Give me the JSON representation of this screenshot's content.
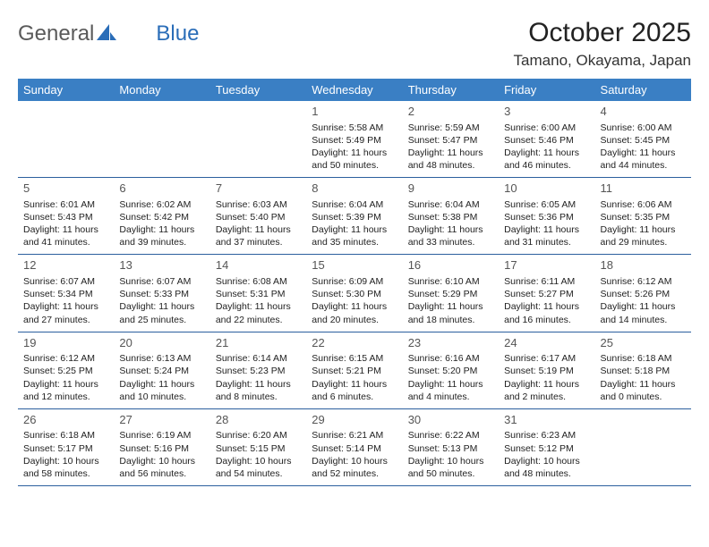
{
  "logo": {
    "text_gray": "General",
    "text_blue": "Blue"
  },
  "title": "October 2025",
  "location": "Tamano, Okayama, Japan",
  "colors": {
    "header_bg": "#3a7fc4",
    "header_text": "#ffffff",
    "row_border": "#2b5f9e",
    "logo_gray": "#5a5a5a",
    "logo_blue": "#2a6db8",
    "daynum": "#555555",
    "body_text": "#222222",
    "page_bg": "#ffffff"
  },
  "weekdays": [
    "Sunday",
    "Monday",
    "Tuesday",
    "Wednesday",
    "Thursday",
    "Friday",
    "Saturday"
  ],
  "weeks": [
    [
      null,
      null,
      null,
      {
        "d": "1",
        "sr": "Sunrise: 5:58 AM",
        "ss": "Sunset: 5:49 PM",
        "dl1": "Daylight: 11 hours",
        "dl2": "and 50 minutes."
      },
      {
        "d": "2",
        "sr": "Sunrise: 5:59 AM",
        "ss": "Sunset: 5:47 PM",
        "dl1": "Daylight: 11 hours",
        "dl2": "and 48 minutes."
      },
      {
        "d": "3",
        "sr": "Sunrise: 6:00 AM",
        "ss": "Sunset: 5:46 PM",
        "dl1": "Daylight: 11 hours",
        "dl2": "and 46 minutes."
      },
      {
        "d": "4",
        "sr": "Sunrise: 6:00 AM",
        "ss": "Sunset: 5:45 PM",
        "dl1": "Daylight: 11 hours",
        "dl2": "and 44 minutes."
      }
    ],
    [
      {
        "d": "5",
        "sr": "Sunrise: 6:01 AM",
        "ss": "Sunset: 5:43 PM",
        "dl1": "Daylight: 11 hours",
        "dl2": "and 41 minutes."
      },
      {
        "d": "6",
        "sr": "Sunrise: 6:02 AM",
        "ss": "Sunset: 5:42 PM",
        "dl1": "Daylight: 11 hours",
        "dl2": "and 39 minutes."
      },
      {
        "d": "7",
        "sr": "Sunrise: 6:03 AM",
        "ss": "Sunset: 5:40 PM",
        "dl1": "Daylight: 11 hours",
        "dl2": "and 37 minutes."
      },
      {
        "d": "8",
        "sr": "Sunrise: 6:04 AM",
        "ss": "Sunset: 5:39 PM",
        "dl1": "Daylight: 11 hours",
        "dl2": "and 35 minutes."
      },
      {
        "d": "9",
        "sr": "Sunrise: 6:04 AM",
        "ss": "Sunset: 5:38 PM",
        "dl1": "Daylight: 11 hours",
        "dl2": "and 33 minutes."
      },
      {
        "d": "10",
        "sr": "Sunrise: 6:05 AM",
        "ss": "Sunset: 5:36 PM",
        "dl1": "Daylight: 11 hours",
        "dl2": "and 31 minutes."
      },
      {
        "d": "11",
        "sr": "Sunrise: 6:06 AM",
        "ss": "Sunset: 5:35 PM",
        "dl1": "Daylight: 11 hours",
        "dl2": "and 29 minutes."
      }
    ],
    [
      {
        "d": "12",
        "sr": "Sunrise: 6:07 AM",
        "ss": "Sunset: 5:34 PM",
        "dl1": "Daylight: 11 hours",
        "dl2": "and 27 minutes."
      },
      {
        "d": "13",
        "sr": "Sunrise: 6:07 AM",
        "ss": "Sunset: 5:33 PM",
        "dl1": "Daylight: 11 hours",
        "dl2": "and 25 minutes."
      },
      {
        "d": "14",
        "sr": "Sunrise: 6:08 AM",
        "ss": "Sunset: 5:31 PM",
        "dl1": "Daylight: 11 hours",
        "dl2": "and 22 minutes."
      },
      {
        "d": "15",
        "sr": "Sunrise: 6:09 AM",
        "ss": "Sunset: 5:30 PM",
        "dl1": "Daylight: 11 hours",
        "dl2": "and 20 minutes."
      },
      {
        "d": "16",
        "sr": "Sunrise: 6:10 AM",
        "ss": "Sunset: 5:29 PM",
        "dl1": "Daylight: 11 hours",
        "dl2": "and 18 minutes."
      },
      {
        "d": "17",
        "sr": "Sunrise: 6:11 AM",
        "ss": "Sunset: 5:27 PM",
        "dl1": "Daylight: 11 hours",
        "dl2": "and 16 minutes."
      },
      {
        "d": "18",
        "sr": "Sunrise: 6:12 AM",
        "ss": "Sunset: 5:26 PM",
        "dl1": "Daylight: 11 hours",
        "dl2": "and 14 minutes."
      }
    ],
    [
      {
        "d": "19",
        "sr": "Sunrise: 6:12 AM",
        "ss": "Sunset: 5:25 PM",
        "dl1": "Daylight: 11 hours",
        "dl2": "and 12 minutes."
      },
      {
        "d": "20",
        "sr": "Sunrise: 6:13 AM",
        "ss": "Sunset: 5:24 PM",
        "dl1": "Daylight: 11 hours",
        "dl2": "and 10 minutes."
      },
      {
        "d": "21",
        "sr": "Sunrise: 6:14 AM",
        "ss": "Sunset: 5:23 PM",
        "dl1": "Daylight: 11 hours",
        "dl2": "and 8 minutes."
      },
      {
        "d": "22",
        "sr": "Sunrise: 6:15 AM",
        "ss": "Sunset: 5:21 PM",
        "dl1": "Daylight: 11 hours",
        "dl2": "and 6 minutes."
      },
      {
        "d": "23",
        "sr": "Sunrise: 6:16 AM",
        "ss": "Sunset: 5:20 PM",
        "dl1": "Daylight: 11 hours",
        "dl2": "and 4 minutes."
      },
      {
        "d": "24",
        "sr": "Sunrise: 6:17 AM",
        "ss": "Sunset: 5:19 PM",
        "dl1": "Daylight: 11 hours",
        "dl2": "and 2 minutes."
      },
      {
        "d": "25",
        "sr": "Sunrise: 6:18 AM",
        "ss": "Sunset: 5:18 PM",
        "dl1": "Daylight: 11 hours",
        "dl2": "and 0 minutes."
      }
    ],
    [
      {
        "d": "26",
        "sr": "Sunrise: 6:18 AM",
        "ss": "Sunset: 5:17 PM",
        "dl1": "Daylight: 10 hours",
        "dl2": "and 58 minutes."
      },
      {
        "d": "27",
        "sr": "Sunrise: 6:19 AM",
        "ss": "Sunset: 5:16 PM",
        "dl1": "Daylight: 10 hours",
        "dl2": "and 56 minutes."
      },
      {
        "d": "28",
        "sr": "Sunrise: 6:20 AM",
        "ss": "Sunset: 5:15 PM",
        "dl1": "Daylight: 10 hours",
        "dl2": "and 54 minutes."
      },
      {
        "d": "29",
        "sr": "Sunrise: 6:21 AM",
        "ss": "Sunset: 5:14 PM",
        "dl1": "Daylight: 10 hours",
        "dl2": "and 52 minutes."
      },
      {
        "d": "30",
        "sr": "Sunrise: 6:22 AM",
        "ss": "Sunset: 5:13 PM",
        "dl1": "Daylight: 10 hours",
        "dl2": "and 50 minutes."
      },
      {
        "d": "31",
        "sr": "Sunrise: 6:23 AM",
        "ss": "Sunset: 5:12 PM",
        "dl1": "Daylight: 10 hours",
        "dl2": "and 48 minutes."
      },
      null
    ]
  ]
}
